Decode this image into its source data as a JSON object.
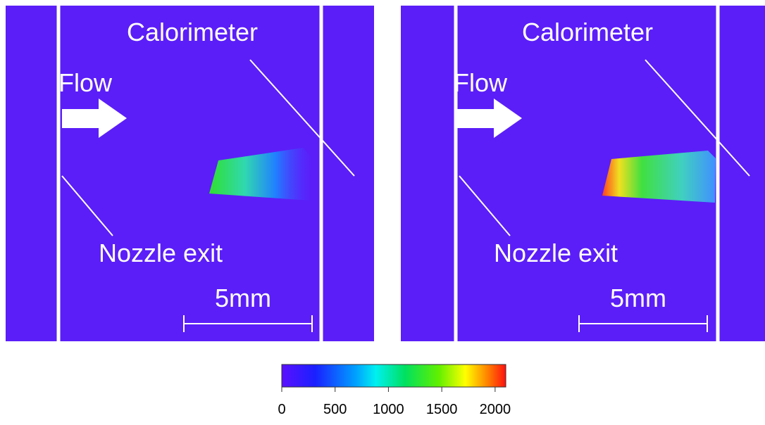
{
  "panels": [
    {
      "calorimeter_label": "Calorimeter",
      "flow_label": "Flow",
      "nozzle_label": "Nozzle exit",
      "scale_bar_label": "5mm"
    },
    {
      "calorimeter_label": "Calorimeter",
      "flow_label": "Flow",
      "nozzle_label": "Nozzle exit",
      "scale_bar_label": "5mm"
    }
  ],
  "colorbar": {
    "lim": [
      0,
      2100
    ],
    "ticks": [
      0,
      500,
      1000,
      1500,
      2000
    ]
  }
}
